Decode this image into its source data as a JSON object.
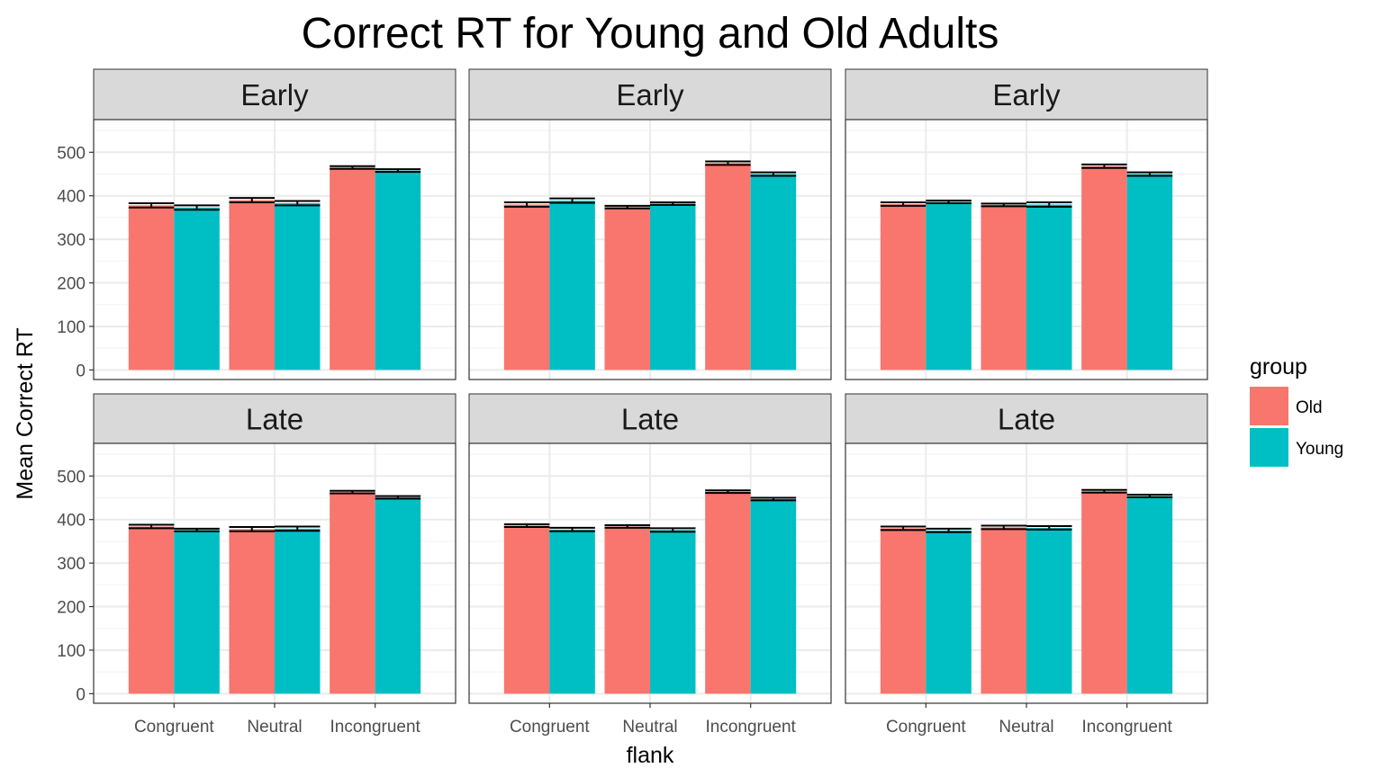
{
  "chart_data": {
    "type": "bar",
    "title": "Correct RT for Young and Old Adults",
    "xlabel": "flank",
    "ylabel": "Mean Correct RT",
    "categories": [
      "Congruent",
      "Neutral",
      "Incongruent"
    ],
    "y_ticks": [
      "0",
      "100",
      "200",
      "300",
      "400",
      "500"
    ],
    "ylim": [
      -22,
      575
    ],
    "grid": true,
    "error_bars": true,
    "legend": {
      "title": "group",
      "position": "right",
      "entries": [
        {
          "name": "Old",
          "color": "#F8766D"
        },
        {
          "name": "Young",
          "color": "#00BFC4"
        }
      ]
    },
    "panels": [
      {
        "label": "Early",
        "series": [
          {
            "name": "Old",
            "values": [
              378,
              390,
              465
            ],
            "errors": [
              5,
              5,
              3
            ]
          },
          {
            "name": "Young",
            "values": [
              373,
              383,
              458
            ],
            "errors": [
              5,
              5,
              3
            ]
          }
        ]
      },
      {
        "label": "Early",
        "series": [
          {
            "name": "Old",
            "values": [
              380,
              374,
              475
            ],
            "errors": [
              5,
              3,
              4
            ]
          },
          {
            "name": "Young",
            "values": [
              389,
              382,
              450
            ],
            "errors": [
              5,
              3,
              4
            ]
          }
        ]
      },
      {
        "label": "Early",
        "series": [
          {
            "name": "Old",
            "values": [
              381,
              379,
              468
            ],
            "errors": [
              4,
              3,
              4
            ]
          },
          {
            "name": "Young",
            "values": [
              386,
              380,
              450
            ],
            "errors": [
              3,
              5,
              4
            ]
          }
        ]
      },
      {
        "label": "Late",
        "series": [
          {
            "name": "Old",
            "values": [
              384,
              378,
              463
            ],
            "errors": [
              4,
              5,
              3
            ]
          },
          {
            "name": "Young",
            "values": [
              376,
              379,
              451
            ],
            "errors": [
              3,
              5,
              3
            ]
          }
        ]
      },
      {
        "label": "Late",
        "series": [
          {
            "name": "Old",
            "values": [
              386,
              384,
              464
            ],
            "errors": [
              3,
              3,
              3
            ]
          },
          {
            "name": "Young",
            "values": [
              377,
              376,
              447
            ],
            "errors": [
              4,
              4,
              3
            ]
          }
        ]
      },
      {
        "label": "Late",
        "series": [
          {
            "name": "Old",
            "values": [
              380,
              382,
              465
            ],
            "errors": [
              4,
              4,
              3
            ]
          },
          {
            "name": "Young",
            "values": [
              375,
              381,
              454
            ],
            "errors": [
              4,
              4,
              3
            ]
          }
        ]
      }
    ]
  }
}
